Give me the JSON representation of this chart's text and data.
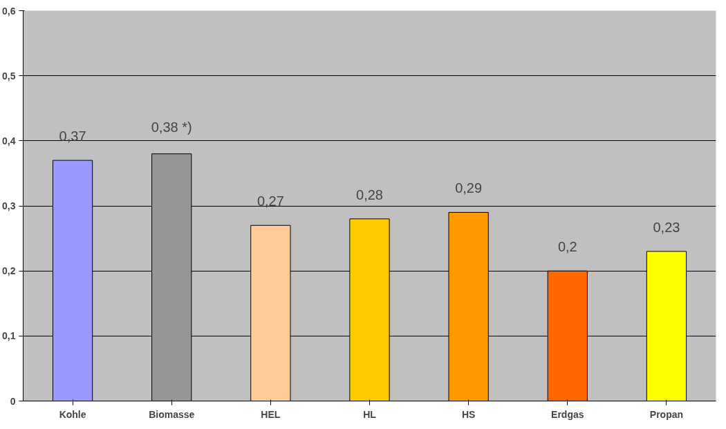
{
  "chart_data": {
    "type": "bar",
    "categories": [
      "Kohle",
      "Biomasse",
      "HEL",
      "HL",
      "HS",
      "Erdgas",
      "Propan"
    ],
    "values": [
      0.37,
      0.38,
      0.27,
      0.28,
      0.29,
      0.2,
      0.23
    ],
    "colors": [
      "#9999ff",
      "#969696",
      "#ffcc99",
      "#ffcc00",
      "#ff9900",
      "#ff6600",
      "#ffff00"
    ],
    "value_labels": [
      "0,37",
      "0,38 *)",
      "0,27",
      "0,28",
      "0,29",
      "0,2",
      "0,23"
    ],
    "ylim": [
      0,
      0.6
    ],
    "yticks": [
      0,
      {
        "value": 0.1,
        "label": "0,1"
      },
      {
        "value": 0.2,
        "label": "0,2"
      },
      {
        "value": 0.3,
        "label": "0,3"
      },
      {
        "value": 0.4,
        "label": "0,4"
      },
      {
        "value": 0.5,
        "label": "0,5"
      },
      {
        "value": 0.6,
        "label": "0,6"
      }
    ],
    "grid": "y"
  }
}
